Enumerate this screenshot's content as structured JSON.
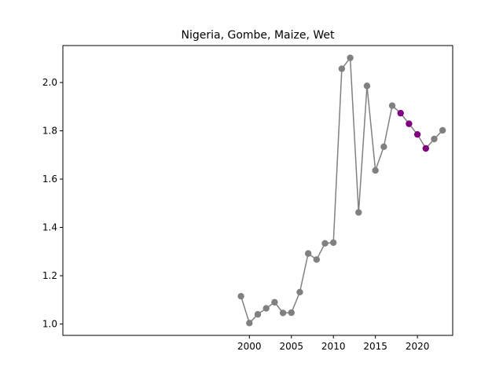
{
  "chart_data": {
    "type": "line",
    "title": "Nigeria, Gombe, Maize, Wet",
    "xlabel": "",
    "ylabel": "",
    "xlim": [
      1977.8,
      2024.2
    ],
    "ylim": [
      0.953,
      2.153
    ],
    "xticks": [
      2000,
      2005,
      2010,
      2015,
      2020
    ],
    "yticks": [
      1.0,
      1.2,
      1.4,
      1.6,
      1.8,
      2.0
    ],
    "xtick_labels": [
      "2000",
      "2005",
      "2010",
      "2015",
      "2020"
    ],
    "ytick_labels": [
      "1.0",
      "1.2",
      "1.4",
      "1.6",
      "1.8",
      "2.0"
    ],
    "grid": false,
    "line_color": "#808080",
    "highlight_color": "#800080",
    "series": [
      {
        "x": [
          1999,
          2000,
          2001,
          2002,
          2003,
          2004,
          2005,
          2006,
          2007,
          2008,
          2009,
          2010,
          2011,
          2012,
          2013,
          2014,
          2015,
          2016,
          2017,
          2018,
          2019,
          2020,
          2021,
          2022,
          2023
        ],
        "values": [
          1.115,
          1.004,
          1.04,
          1.065,
          1.09,
          1.046,
          1.047,
          1.132,
          1.292,
          1.267,
          1.334,
          1.337,
          2.057,
          2.102,
          1.462,
          1.986,
          1.636,
          1.734,
          1.904,
          1.873,
          1.829,
          1.785,
          1.727,
          1.766,
          1.802
        ],
        "highlighted": [
          false,
          false,
          false,
          false,
          false,
          false,
          false,
          false,
          false,
          false,
          false,
          false,
          false,
          false,
          false,
          false,
          false,
          false,
          false,
          true,
          true,
          true,
          true,
          false,
          false
        ]
      }
    ]
  }
}
